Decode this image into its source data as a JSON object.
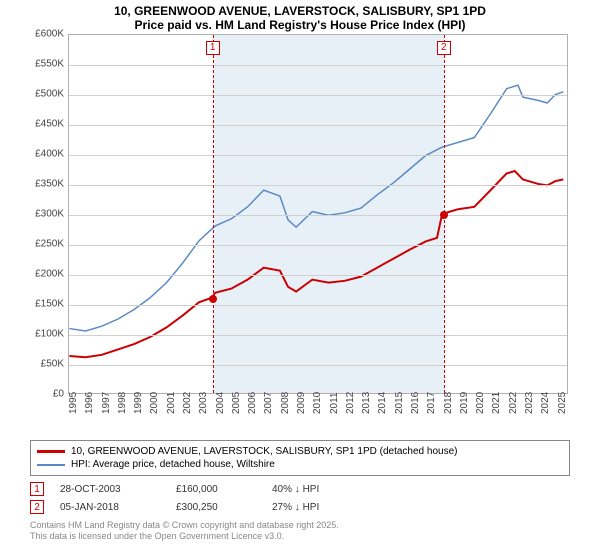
{
  "title": {
    "line1": "10, GREENWOOD AVENUE, LAVERSTOCK, SALISBURY, SP1 1PD",
    "line2": "Price paid vs. HM Land Registry's House Price Index (HPI)"
  },
  "chart": {
    "type": "line",
    "background_color": "#ffffff",
    "grid_color": "#d0d0d0",
    "shade_color": "#e8f0f7",
    "x": {
      "min": 1995,
      "max": 2025.7,
      "tick_step": 1,
      "label_fontsize": 10
    },
    "y": {
      "min": 0,
      "max": 600,
      "tick_step": 50,
      "prefix": "£",
      "suffix": "K",
      "label_fontsize": 10
    },
    "shade_range": {
      "x0": 2003.82,
      "x1": 2018.01
    },
    "series": [
      {
        "name": "price_paid",
        "color": "#cc0000",
        "width": 2,
        "points": [
          [
            1995,
            62
          ],
          [
            1996,
            60
          ],
          [
            1997,
            64
          ],
          [
            1998,
            73
          ],
          [
            1999,
            82
          ],
          [
            2000,
            94
          ],
          [
            2001,
            110
          ],
          [
            2002,
            130
          ],
          [
            2003,
            152
          ],
          [
            2003.82,
            160
          ],
          [
            2004,
            168
          ],
          [
            2005,
            175
          ],
          [
            2006,
            190
          ],
          [
            2007,
            210
          ],
          [
            2008,
            205
          ],
          [
            2008.5,
            178
          ],
          [
            2009,
            170
          ],
          [
            2010,
            190
          ],
          [
            2011,
            185
          ],
          [
            2012,
            188
          ],
          [
            2013,
            195
          ],
          [
            2014,
            210
          ],
          [
            2015,
            225
          ],
          [
            2016,
            240
          ],
          [
            2017,
            254
          ],
          [
            2017.7,
            260
          ],
          [
            2018.01,
            300
          ],
          [
            2018.5,
            304
          ],
          [
            2019,
            308
          ],
          [
            2020,
            312
          ],
          [
            2021,
            340
          ],
          [
            2022,
            368
          ],
          [
            2022.5,
            372
          ],
          [
            2023,
            358
          ],
          [
            2024,
            350
          ],
          [
            2024.5,
            348
          ],
          [
            2025,
            355
          ],
          [
            2025.5,
            358
          ]
        ]
      },
      {
        "name": "hpi",
        "color": "#5a8ac6",
        "width": 1.5,
        "points": [
          [
            1995,
            108
          ],
          [
            1996,
            104
          ],
          [
            1997,
            112
          ],
          [
            1998,
            124
          ],
          [
            1999,
            140
          ],
          [
            2000,
            160
          ],
          [
            2001,
            185
          ],
          [
            2002,
            218
          ],
          [
            2003,
            255
          ],
          [
            2004,
            280
          ],
          [
            2005,
            292
          ],
          [
            2006,
            312
          ],
          [
            2007,
            340
          ],
          [
            2008,
            330
          ],
          [
            2008.5,
            290
          ],
          [
            2009,
            278
          ],
          [
            2010,
            304
          ],
          [
            2011,
            298
          ],
          [
            2012,
            302
          ],
          [
            2013,
            310
          ],
          [
            2014,
            332
          ],
          [
            2015,
            352
          ],
          [
            2016,
            375
          ],
          [
            2017,
            398
          ],
          [
            2018,
            412
          ],
          [
            2019,
            420
          ],
          [
            2020,
            428
          ],
          [
            2021,
            468
          ],
          [
            2022,
            510
          ],
          [
            2022.7,
            516
          ],
          [
            2023,
            496
          ],
          [
            2024,
            490
          ],
          [
            2024.5,
            486
          ],
          [
            2025,
            500
          ],
          [
            2025.5,
            505
          ]
        ]
      }
    ],
    "markers": [
      {
        "n": "1",
        "x": 2003.82,
        "y": 160,
        "color": "#cc0000"
      },
      {
        "n": "2",
        "x": 2018.01,
        "y": 300,
        "color": "#cc0000"
      }
    ]
  },
  "legend": {
    "items": [
      {
        "color": "#cc0000",
        "width": 3,
        "label": "10, GREENWOOD AVENUE, LAVERSTOCK, SALISBURY, SP1 1PD (detached house)"
      },
      {
        "color": "#5a8ac6",
        "width": 2,
        "label": "HPI: Average price, detached house, Wiltshire"
      }
    ]
  },
  "sales": [
    {
      "n": "1",
      "date": "28-OCT-2003",
      "price": "£160,000",
      "delta": "40% ↓ HPI"
    },
    {
      "n": "2",
      "date": "05-JAN-2018",
      "price": "£300,250",
      "delta": "27% ↓ HPI"
    }
  ],
  "attribution": {
    "line1": "Contains HM Land Registry data © Crown copyright and database right 2025.",
    "line2": "This data is licensed under the Open Government Licence v3.0."
  }
}
